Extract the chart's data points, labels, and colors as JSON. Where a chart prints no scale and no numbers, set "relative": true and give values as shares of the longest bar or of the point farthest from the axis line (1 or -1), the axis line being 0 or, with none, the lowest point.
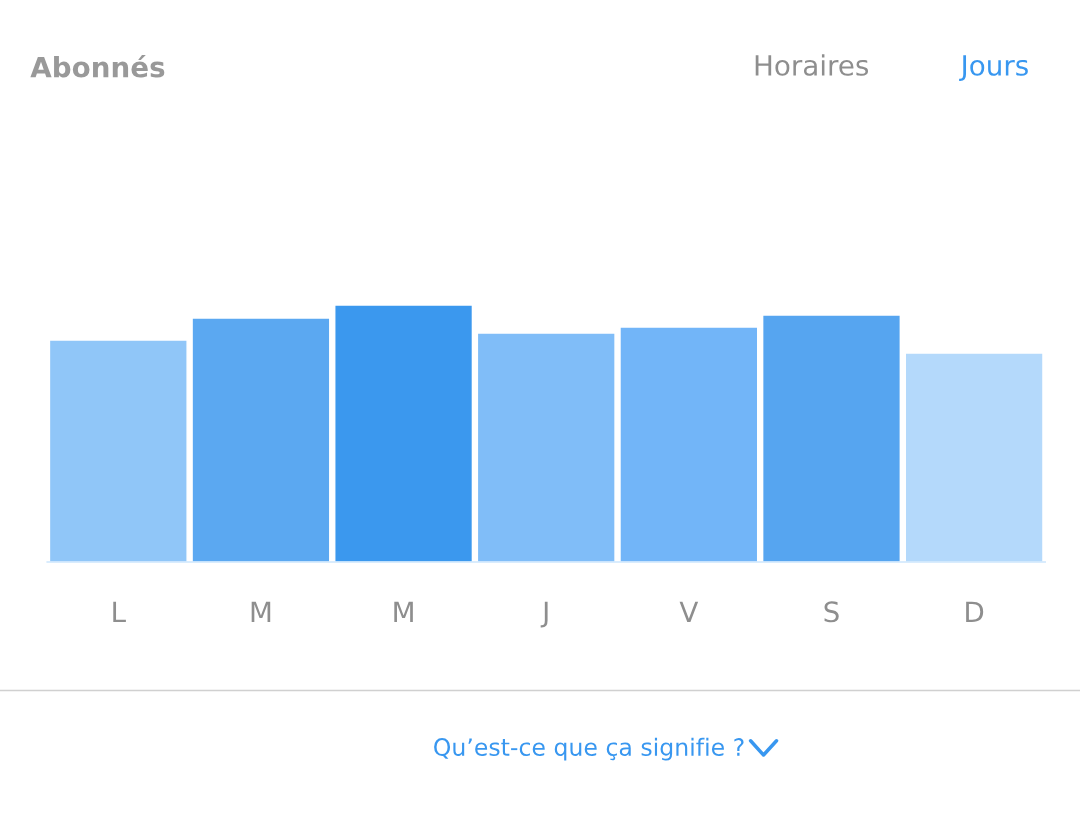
{
  "chart_data": {
    "type": "bar",
    "title": "Abonnés",
    "categories": [
      "L",
      "M",
      "M",
      "J",
      "V",
      "S",
      "D"
    ],
    "relative": true,
    "values": [
      0.864,
      0.949,
      1,
      0.891,
      0.914,
      0.961,
      0.813
    ],
    "colors": [
      "#90c6f8",
      "#5ba8f1",
      "#3b98ee",
      "#80bdf8",
      "#72b5f8",
      "#56a5f0",
      "#b4d9fb"
    ],
    "annotations": [
      "Horaires",
      "Jours",
      "Qu’est-ce que ça signifie ?"
    ],
    "grid": false,
    "legend": false
  }
}
